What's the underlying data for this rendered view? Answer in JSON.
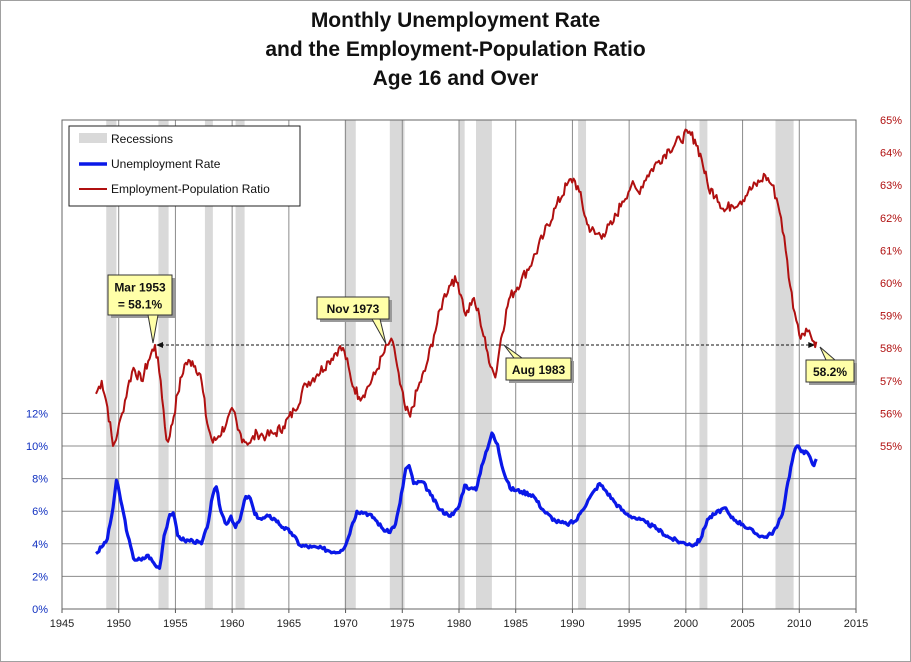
{
  "chart_data": {
    "type": "line",
    "title_lines": [
      "Monthly Unemployment Rate",
      "and the Employment-Population Ratio",
      "Age 16 and Over"
    ],
    "x_ticks": [
      "1945",
      "1950",
      "1955",
      "1960",
      "1965",
      "1970",
      "1975",
      "1980",
      "1985",
      "1990",
      "1995",
      "2000",
      "2005",
      "2010",
      "2015"
    ],
    "xlim": [
      1945,
      2015
    ],
    "y_left": {
      "ticks": [
        "0%",
        "2%",
        "4%",
        "6%",
        "8%",
        "10%",
        "12%"
      ],
      "ylim": [
        0,
        30
      ],
      "color": "#1030c0"
    },
    "y_right": {
      "ticks": [
        "55%",
        "56%",
        "57%",
        "58%",
        "59%",
        "60%",
        "61%",
        "62%",
        "63%",
        "64%",
        "65%"
      ],
      "ylim": [
        50,
        65
      ],
      "color": "#b01010"
    },
    "legend": {
      "position": "top-left",
      "entries": [
        "Recessions",
        "Unemployment Rate",
        "Employment-Population Ratio"
      ]
    },
    "recessions": [
      [
        1948.9,
        1949.8
      ],
      [
        1953.5,
        1954.4
      ],
      [
        1957.6,
        1958.3
      ],
      [
        1960.3,
        1961.1
      ],
      [
        1969.9,
        1970.9
      ],
      [
        1973.9,
        1975.2
      ],
      [
        1980.0,
        1980.5
      ],
      [
        1981.5,
        1982.9
      ],
      [
        1990.5,
        1991.2
      ],
      [
        2001.2,
        2001.9
      ],
      [
        2007.9,
        2009.5
      ]
    ],
    "series": [
      {
        "name": "Unemployment Rate",
        "axis": "left",
        "color": "#0a18e8",
        "points": [
          [
            1948.0,
            3.4
          ],
          [
            1948.5,
            3.8
          ],
          [
            1949.0,
            4.3
          ],
          [
            1949.5,
            6.2
          ],
          [
            1949.8,
            7.9
          ],
          [
            1950.3,
            6.3
          ],
          [
            1950.8,
            4.5
          ],
          [
            1951.3,
            3.1
          ],
          [
            1952.0,
            3.0
          ],
          [
            1952.6,
            3.3
          ],
          [
            1953.2,
            2.7
          ],
          [
            1953.6,
            2.5
          ],
          [
            1954.0,
            4.5
          ],
          [
            1954.5,
            5.8
          ],
          [
            1954.8,
            5.9
          ],
          [
            1955.2,
            4.5
          ],
          [
            1955.8,
            4.2
          ],
          [
            1956.5,
            4.2
          ],
          [
            1957.3,
            4.0
          ],
          [
            1957.8,
            5.0
          ],
          [
            1958.3,
            7.0
          ],
          [
            1958.6,
            7.5
          ],
          [
            1959.0,
            6.0
          ],
          [
            1959.5,
            5.2
          ],
          [
            1959.9,
            5.7
          ],
          [
            1960.3,
            5.0
          ],
          [
            1960.7,
            5.5
          ],
          [
            1961.2,
            6.9
          ],
          [
            1961.6,
            6.8
          ],
          [
            1962.0,
            5.8
          ],
          [
            1962.6,
            5.5
          ],
          [
            1963.2,
            5.7
          ],
          [
            1963.8,
            5.5
          ],
          [
            1964.5,
            5.0
          ],
          [
            1965.2,
            4.7
          ],
          [
            1966.0,
            3.9
          ],
          [
            1967.0,
            3.8
          ],
          [
            1968.0,
            3.7
          ],
          [
            1969.0,
            3.5
          ],
          [
            1969.6,
            3.6
          ],
          [
            1970.0,
            3.9
          ],
          [
            1970.5,
            5.0
          ],
          [
            1971.0,
            6.0
          ],
          [
            1971.8,
            5.9
          ],
          [
            1972.5,
            5.6
          ],
          [
            1973.3,
            4.9
          ],
          [
            1973.8,
            4.7
          ],
          [
            1974.4,
            5.2
          ],
          [
            1974.8,
            6.5
          ],
          [
            1975.3,
            8.6
          ],
          [
            1975.6,
            8.8
          ],
          [
            1976.0,
            7.7
          ],
          [
            1976.8,
            7.8
          ],
          [
            1977.5,
            7.0
          ],
          [
            1978.3,
            6.1
          ],
          [
            1979.0,
            5.8
          ],
          [
            1979.5,
            5.8
          ],
          [
            1980.0,
            6.3
          ],
          [
            1980.5,
            7.6
          ],
          [
            1981.0,
            7.4
          ],
          [
            1981.5,
            7.3
          ],
          [
            1982.0,
            8.8
          ],
          [
            1982.5,
            9.8
          ],
          [
            1982.9,
            10.8
          ],
          [
            1983.4,
            10.1
          ],
          [
            1983.9,
            8.5
          ],
          [
            1984.5,
            7.4
          ],
          [
            1985.5,
            7.2
          ],
          [
            1986.5,
            7.0
          ],
          [
            1987.5,
            6.0
          ],
          [
            1988.5,
            5.4
          ],
          [
            1989.0,
            5.3
          ],
          [
            1989.5,
            5.2
          ],
          [
            1990.3,
            5.4
          ],
          [
            1990.8,
            6.0
          ],
          [
            1991.5,
            6.8
          ],
          [
            1992.4,
            7.7
          ],
          [
            1993.0,
            7.2
          ],
          [
            1993.8,
            6.5
          ],
          [
            1994.6,
            5.9
          ],
          [
            1995.5,
            5.6
          ],
          [
            1996.5,
            5.3
          ],
          [
            1997.5,
            4.9
          ],
          [
            1998.5,
            4.4
          ],
          [
            1999.5,
            4.1
          ],
          [
            2000.3,
            4.0
          ],
          [
            2000.7,
            3.9
          ],
          [
            2001.3,
            4.3
          ],
          [
            2001.9,
            5.5
          ],
          [
            2002.5,
            5.8
          ],
          [
            2003.4,
            6.2
          ],
          [
            2004.0,
            5.6
          ],
          [
            2005.0,
            5.2
          ],
          [
            2006.0,
            4.7
          ],
          [
            2006.9,
            4.4
          ],
          [
            2007.5,
            4.6
          ],
          [
            2008.0,
            5.0
          ],
          [
            2008.5,
            5.8
          ],
          [
            2009.0,
            7.8
          ],
          [
            2009.5,
            9.5
          ],
          [
            2009.8,
            10.0
          ],
          [
            2010.3,
            9.7
          ],
          [
            2010.8,
            9.5
          ],
          [
            2011.1,
            9.0
          ],
          [
            2011.3,
            8.8
          ],
          [
            2011.5,
            9.2
          ]
        ]
      },
      {
        "name": "Employment-Population Ratio",
        "axis": "right",
        "color": "#b01010",
        "points": [
          [
            1948.0,
            56.6
          ],
          [
            1948.5,
            57.0
          ],
          [
            1949.0,
            56.2
          ],
          [
            1949.5,
            55.0
          ],
          [
            1949.9,
            55.4
          ],
          [
            1950.3,
            56.0
          ],
          [
            1950.8,
            56.8
          ],
          [
            1951.3,
            57.4
          ],
          [
            1952.0,
            57.0
          ],
          [
            1952.6,
            57.6
          ],
          [
            1953.2,
            58.1
          ],
          [
            1953.7,
            57.0
          ],
          [
            1954.2,
            55.2
          ],
          [
            1954.5,
            55.3
          ],
          [
            1955.2,
            56.6
          ],
          [
            1955.8,
            57.5
          ],
          [
            1956.5,
            57.6
          ],
          [
            1957.2,
            57.2
          ],
          [
            1957.8,
            55.7
          ],
          [
            1958.3,
            55.1
          ],
          [
            1958.8,
            55.3
          ],
          [
            1959.5,
            55.7
          ],
          [
            1960.1,
            56.1
          ],
          [
            1960.5,
            55.5
          ],
          [
            1961.0,
            55.2
          ],
          [
            1961.6,
            55.1
          ],
          [
            1962.2,
            55.4
          ],
          [
            1963.0,
            55.3
          ],
          [
            1963.8,
            55.4
          ],
          [
            1964.5,
            55.6
          ],
          [
            1965.5,
            56.1
          ],
          [
            1966.5,
            56.9
          ],
          [
            1967.5,
            57.2
          ],
          [
            1968.5,
            57.6
          ],
          [
            1969.4,
            58.0
          ],
          [
            1969.9,
            57.9
          ],
          [
            1970.5,
            57.0
          ],
          [
            1971.2,
            56.5
          ],
          [
            1971.8,
            56.7
          ],
          [
            1972.6,
            57.2
          ],
          [
            1973.3,
            57.8
          ],
          [
            1973.9,
            58.2
          ],
          [
            1974.3,
            58.0
          ],
          [
            1974.8,
            56.9
          ],
          [
            1975.3,
            56.1
          ],
          [
            1975.7,
            55.9
          ],
          [
            1976.3,
            56.7
          ],
          [
            1977.0,
            57.3
          ],
          [
            1977.8,
            58.4
          ],
          [
            1978.6,
            59.5
          ],
          [
            1979.4,
            60.1
          ],
          [
            1979.9,
            60.0
          ],
          [
            1980.3,
            59.5
          ],
          [
            1980.6,
            59.0
          ],
          [
            1981.2,
            59.5
          ],
          [
            1981.8,
            59.0
          ],
          [
            1982.4,
            58.0
          ],
          [
            1982.9,
            57.4
          ],
          [
            1983.2,
            57.1
          ],
          [
            1983.7,
            58.3
          ],
          [
            1984.4,
            59.5
          ],
          [
            1985.5,
            60.1
          ],
          [
            1986.5,
            60.7
          ],
          [
            1987.5,
            61.5
          ],
          [
            1988.5,
            62.3
          ],
          [
            1989.5,
            63.0
          ],
          [
            1990.1,
            63.2
          ],
          [
            1990.6,
            62.8
          ],
          [
            1991.3,
            61.8
          ],
          [
            1992.0,
            61.5
          ],
          [
            1992.7,
            61.5
          ],
          [
            1993.5,
            61.8
          ],
          [
            1994.4,
            62.5
          ],
          [
            1995.2,
            63.0
          ],
          [
            1995.8,
            62.8
          ],
          [
            1996.6,
            63.3
          ],
          [
            1997.5,
            63.7
          ],
          [
            1998.5,
            64.1
          ],
          [
            1999.5,
            64.4
          ],
          [
            2000.2,
            64.6
          ],
          [
            2000.8,
            64.4
          ],
          [
            2001.4,
            63.8
          ],
          [
            2002.0,
            62.9
          ],
          [
            2002.7,
            62.7
          ],
          [
            2003.4,
            62.2
          ],
          [
            2004.0,
            62.4
          ],
          [
            2004.8,
            62.5
          ],
          [
            2005.5,
            62.8
          ],
          [
            2006.5,
            63.1
          ],
          [
            2007.0,
            63.3
          ],
          [
            2007.6,
            63.0
          ],
          [
            2008.0,
            62.6
          ],
          [
            2008.4,
            62.0
          ],
          [
            2008.8,
            61.0
          ],
          [
            2009.2,
            59.9
          ],
          [
            2009.6,
            59.1
          ],
          [
            2010.0,
            58.4
          ],
          [
            2010.6,
            58.6
          ],
          [
            2011.0,
            58.4
          ],
          [
            2011.3,
            58.2
          ],
          [
            2011.5,
            58.2
          ]
        ]
      }
    ],
    "annotations": [
      {
        "lines": [
          "Mar 1953",
          "= 58.1%"
        ],
        "x": 1953.2,
        "y": 58.1
      },
      {
        "lines": [
          "Nov 1973"
        ],
        "x": 1973.9,
        "y": 58.2
      },
      {
        "lines": [
          "Aug 1983"
        ],
        "x": 1983.6,
        "y": 58.0
      },
      {
        "lines": [
          "58.2%"
        ],
        "x": 2011.5,
        "y": 58.2
      }
    ],
    "reference_line": {
      "y": 58.1,
      "from": 1953.2,
      "to": 2011.5,
      "style": "dashed"
    }
  }
}
